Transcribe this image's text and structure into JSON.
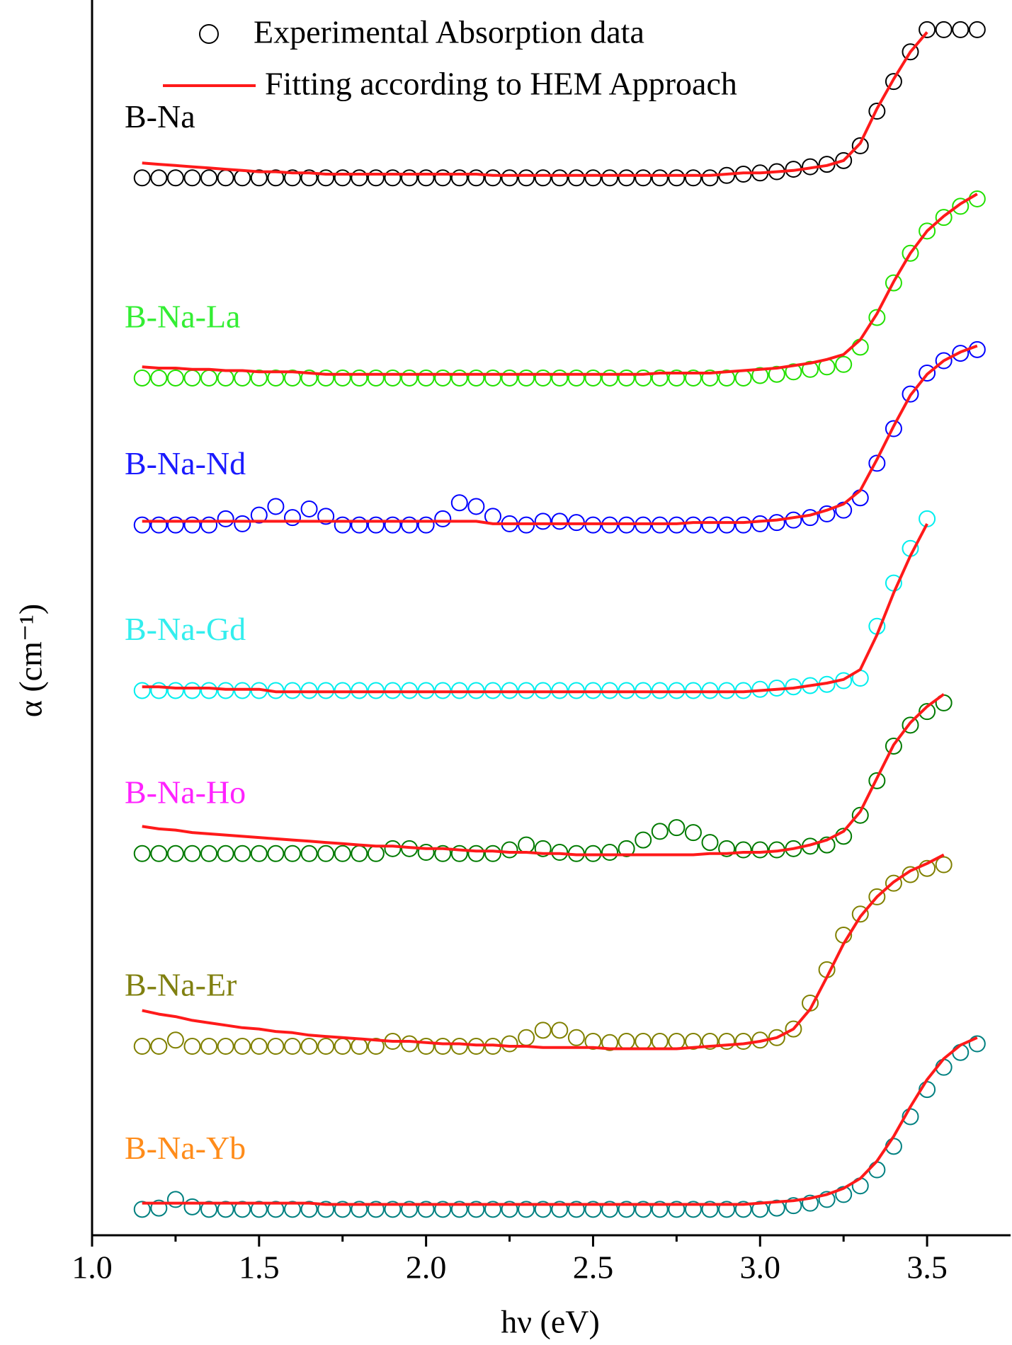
{
  "chart_data": {
    "type": "offset-scatter-fit",
    "xlabel": "hν (eV)",
    "ylabel": "α (cm⁻¹)",
    "xlim": [
      1.0,
      3.75
    ],
    "ylim": [
      0,
      100
    ],
    "xticks": [
      {
        "value": 1,
        "label": "1.0"
      },
      1.5,
      {
        "value": 2,
        "label": "2.0"
      },
      2.5,
      {
        "value": 3,
        "label": "3.0"
      },
      3.5
    ],
    "xminor_ticks": [
      1.25,
      1.75,
      2.25,
      2.75,
      3.25
    ],
    "fit_color": "#ff1a1a",
    "legend": [
      "Experimental Absorption data",
      "Fitting according to HEM Approach"
    ],
    "x": [
      1.15,
      1.2,
      1.25,
      1.3,
      1.35,
      1.4,
      1.45,
      1.5,
      1.55,
      1.6,
      1.65,
      1.7,
      1.75,
      1.8,
      1.85,
      1.9,
      1.95,
      2.0,
      2.05,
      2.1,
      2.15,
      2.2,
      2.25,
      2.3,
      2.35,
      2.4,
      2.45,
      2.5,
      2.55,
      2.6,
      2.65,
      2.7,
      2.75,
      2.8,
      2.85,
      2.9,
      2.95,
      3.0,
      3.05,
      3.1,
      3.15,
      3.2,
      3.25,
      3.3,
      3.35,
      3.4,
      3.45,
      3.5,
      3.55,
      3.6,
      3.65
    ],
    "series": [
      {
        "name": "B-Na",
        "color": "#000000",
        "label_color": "#000000",
        "values": [
          85.6,
          85.6,
          85.6,
          85.6,
          85.6,
          85.6,
          85.6,
          85.6,
          85.6,
          85.6,
          85.6,
          85.6,
          85.6,
          85.6,
          85.6,
          85.6,
          85.6,
          85.6,
          85.6,
          85.6,
          85.6,
          85.6,
          85.6,
          85.6,
          85.6,
          85.6,
          85.6,
          85.6,
          85.6,
          85.6,
          85.6,
          85.6,
          85.6,
          85.6,
          85.6,
          85.8,
          85.9,
          86.0,
          86.1,
          86.3,
          86.5,
          86.7,
          87.0,
          88.2,
          91.0,
          93.4,
          95.8,
          97.6,
          97.6,
          97.6,
          97.6
        ],
        "fit": [
          86.8,
          86.7,
          86.6,
          86.5,
          86.4,
          86.3,
          86.2,
          86.1,
          86.1,
          86.0,
          86.0,
          85.9,
          85.9,
          85.9,
          85.9,
          85.9,
          85.9,
          85.9,
          85.9,
          85.9,
          85.9,
          85.8,
          85.8,
          85.8,
          85.8,
          85.8,
          85.8,
          85.8,
          85.8,
          85.8,
          85.8,
          85.8,
          85.8,
          85.8,
          85.8,
          85.9,
          86.0,
          86.0,
          86.1,
          86.2,
          86.4,
          86.6,
          87.0,
          88.4,
          91.2,
          93.6,
          95.8,
          97.4,
          null,
          null,
          null
        ]
      },
      {
        "name": "B-Na-La",
        "color": "#22e000",
        "label_color": "#33ee33",
        "values": [
          69.4,
          69.4,
          69.4,
          69.4,
          69.4,
          69.4,
          69.4,
          69.4,
          69.4,
          69.4,
          69.4,
          69.4,
          69.4,
          69.4,
          69.4,
          69.4,
          69.4,
          69.4,
          69.4,
          69.4,
          69.4,
          69.4,
          69.4,
          69.4,
          69.4,
          69.4,
          69.4,
          69.4,
          69.4,
          69.4,
          69.4,
          69.4,
          69.4,
          69.4,
          69.4,
          69.4,
          69.4,
          69.6,
          69.7,
          69.9,
          70.1,
          70.3,
          70.5,
          71.9,
          74.3,
          77.1,
          79.5,
          81.3,
          82.4,
          83.3,
          83.9
        ],
        "fit": [
          70.3,
          70.2,
          70.2,
          70.1,
          70.1,
          70.0,
          70.0,
          69.9,
          69.9,
          69.9,
          69.8,
          69.7,
          69.7,
          69.7,
          69.7,
          69.7,
          69.7,
          69.7,
          69.7,
          69.7,
          69.7,
          69.7,
          69.7,
          69.7,
          69.7,
          69.7,
          69.7,
          69.7,
          69.7,
          69.7,
          69.7,
          69.8,
          69.8,
          69.8,
          69.8,
          69.9,
          70.0,
          70.1,
          70.2,
          70.4,
          70.6,
          70.9,
          71.3,
          72.5,
          74.6,
          77.2,
          79.5,
          81.3,
          82.5,
          83.5,
          84.3
        ]
      },
      {
        "name": "B-Na-Nd",
        "color": "#0000ff",
        "label_color": "#1a1aff",
        "values": [
          57.5,
          57.5,
          57.5,
          57.5,
          57.5,
          58.0,
          57.6,
          58.3,
          59.0,
          58.1,
          58.8,
          58.2,
          57.5,
          57.5,
          57.5,
          57.5,
          57.5,
          57.5,
          58.0,
          59.3,
          59.0,
          58.2,
          57.6,
          57.5,
          57.8,
          57.8,
          57.7,
          57.5,
          57.5,
          57.5,
          57.5,
          57.5,
          57.5,
          57.5,
          57.5,
          57.5,
          57.5,
          57.6,
          57.7,
          57.9,
          58.1,
          58.4,
          58.7,
          59.7,
          62.5,
          65.3,
          68.1,
          69.8,
          70.8,
          71.4,
          71.7
        ],
        "fit": [
          57.8,
          57.8,
          57.8,
          57.8,
          57.8,
          57.8,
          57.8,
          57.8,
          57.8,
          57.8,
          57.8,
          57.8,
          57.8,
          57.8,
          57.8,
          57.8,
          57.8,
          57.8,
          57.8,
          57.8,
          57.8,
          57.6,
          57.6,
          57.6,
          57.6,
          57.6,
          57.6,
          57.6,
          57.6,
          57.6,
          57.6,
          57.6,
          57.6,
          57.7,
          57.7,
          57.7,
          57.7,
          57.8,
          57.9,
          58.1,
          58.3,
          58.7,
          59.2,
          60.3,
          62.8,
          65.5,
          68.0,
          69.7,
          70.8,
          71.5,
          72.0
        ]
      },
      {
        "name": "B-Na-Gd",
        "color": "#00eeee",
        "label_color": "#33eeee",
        "values": [
          44.1,
          44.1,
          44.1,
          44.1,
          44.1,
          44.1,
          44.1,
          44.1,
          44.1,
          44.1,
          44.1,
          44.1,
          44.1,
          44.1,
          44.1,
          44.1,
          44.1,
          44.1,
          44.1,
          44.1,
          44.1,
          44.1,
          44.1,
          44.1,
          44.1,
          44.1,
          44.1,
          44.1,
          44.1,
          44.1,
          44.1,
          44.1,
          44.1,
          44.1,
          44.1,
          44.1,
          44.1,
          44.2,
          44.3,
          44.4,
          44.5,
          44.6,
          44.9,
          45.1,
          49.3,
          52.8,
          55.6,
          58.0,
          null,
          null,
          null
        ],
        "fit": [
          44.4,
          44.4,
          44.3,
          44.3,
          44.3,
          44.2,
          44.2,
          44.2,
          44.0,
          44.0,
          44.0,
          44.0,
          44.0,
          44.0,
          44.0,
          44.0,
          44.0,
          44.0,
          44.0,
          44.0,
          44.0,
          44.0,
          44.0,
          44.0,
          44.0,
          44.0,
          44.0,
          44.0,
          44.0,
          44.0,
          44.0,
          44.0,
          44.0,
          44.0,
          44.0,
          44.0,
          44.0,
          44.1,
          44.2,
          44.3,
          44.5,
          44.7,
          45.0,
          45.8,
          48.6,
          52.0,
          55.0,
          57.6,
          null,
          null,
          null
        ]
      },
      {
        "name": "B-Na-Ho",
        "color": "#007a00",
        "label_color": "#ff22ff",
        "values": [
          30.9,
          30.9,
          30.9,
          30.9,
          30.9,
          30.9,
          30.9,
          30.9,
          30.9,
          30.9,
          30.9,
          30.9,
          30.9,
          30.9,
          30.9,
          31.3,
          31.3,
          31.0,
          30.9,
          30.9,
          30.9,
          30.9,
          31.2,
          31.6,
          31.3,
          31.0,
          30.9,
          30.9,
          31.0,
          31.3,
          32.0,
          32.7,
          33.0,
          32.6,
          31.8,
          31.3,
          31.2,
          31.2,
          31.2,
          31.3,
          31.5,
          31.6,
          32.3,
          34.0,
          36.8,
          39.6,
          41.3,
          42.4,
          43.1,
          null,
          null
        ],
        "fit": [
          33.1,
          32.9,
          32.8,
          32.6,
          32.5,
          32.4,
          32.3,
          32.2,
          32.1,
          32.0,
          31.9,
          31.8,
          31.7,
          31.6,
          31.5,
          31.5,
          31.4,
          31.3,
          31.3,
          31.2,
          31.1,
          31.1,
          31.0,
          31.0,
          30.9,
          30.9,
          30.8,
          30.8,
          30.8,
          30.8,
          30.8,
          30.8,
          30.8,
          30.8,
          30.9,
          30.9,
          31.0,
          31.0,
          31.1,
          31.3,
          31.6,
          32.0,
          32.7,
          34.3,
          37.0,
          39.7,
          41.5,
          42.8,
          43.8,
          null,
          null
        ]
      },
      {
        "name": "B-Na-Er",
        "color": "#808000",
        "label_color": "#808010",
        "values": [
          15.3,
          15.3,
          15.8,
          15.3,
          15.3,
          15.3,
          15.3,
          15.3,
          15.3,
          15.3,
          15.3,
          15.3,
          15.3,
          15.3,
          15.3,
          15.7,
          15.5,
          15.3,
          15.3,
          15.3,
          15.3,
          15.3,
          15.5,
          16.0,
          16.6,
          16.6,
          16.0,
          15.7,
          15.6,
          15.7,
          15.7,
          15.7,
          15.7,
          15.7,
          15.7,
          15.7,
          15.7,
          15.8,
          16.0,
          16.7,
          18.8,
          21.5,
          24.3,
          26.0,
          27.4,
          28.5,
          29.2,
          29.7,
          30.0,
          null,
          null
        ],
        "fit": [
          18.2,
          17.9,
          17.7,
          17.4,
          17.2,
          17.0,
          16.8,
          16.7,
          16.5,
          16.4,
          16.2,
          16.1,
          16.0,
          15.9,
          15.8,
          15.7,
          15.7,
          15.6,
          15.5,
          15.5,
          15.4,
          15.4,
          15.3,
          15.3,
          15.2,
          15.2,
          15.2,
          15.2,
          15.1,
          15.1,
          15.1,
          15.1,
          15.1,
          15.2,
          15.3,
          15.4,
          15.5,
          15.7,
          16.0,
          16.7,
          18.3,
          20.9,
          23.6,
          25.8,
          27.4,
          28.6,
          29.5,
          30.1,
          30.8,
          null,
          null
        ]
      },
      {
        "name": "B-Na-Yb",
        "color": "#008080",
        "label_color": "#ff8c1a",
        "values": [
          2.1,
          2.2,
          2.9,
          2.3,
          2.1,
          2.1,
          2.1,
          2.1,
          2.1,
          2.1,
          2.1,
          2.1,
          2.1,
          2.1,
          2.1,
          2.1,
          2.1,
          2.1,
          2.1,
          2.1,
          2.1,
          2.1,
          2.1,
          2.1,
          2.1,
          2.1,
          2.1,
          2.1,
          2.1,
          2.1,
          2.1,
          2.1,
          2.1,
          2.1,
          2.1,
          2.1,
          2.1,
          2.1,
          2.2,
          2.4,
          2.6,
          2.9,
          3.3,
          4.0,
          5.3,
          7.2,
          9.6,
          11.8,
          13.6,
          14.8,
          15.5
        ],
        "fit": [
          2.6,
          2.6,
          2.6,
          2.6,
          2.6,
          2.6,
          2.6,
          2.6,
          2.6,
          2.6,
          2.6,
          2.5,
          2.5,
          2.5,
          2.5,
          2.5,
          2.5,
          2.5,
          2.5,
          2.5,
          2.5,
          2.5,
          2.5,
          2.5,
          2.5,
          2.5,
          2.5,
          2.5,
          2.5,
          2.5,
          2.5,
          2.5,
          2.5,
          2.5,
          2.5,
          2.5,
          2.5,
          2.6,
          2.7,
          2.8,
          3.0,
          3.3,
          3.8,
          4.6,
          6.0,
          8.0,
          10.4,
          12.6,
          14.3,
          15.4,
          16.0
        ]
      }
    ]
  }
}
